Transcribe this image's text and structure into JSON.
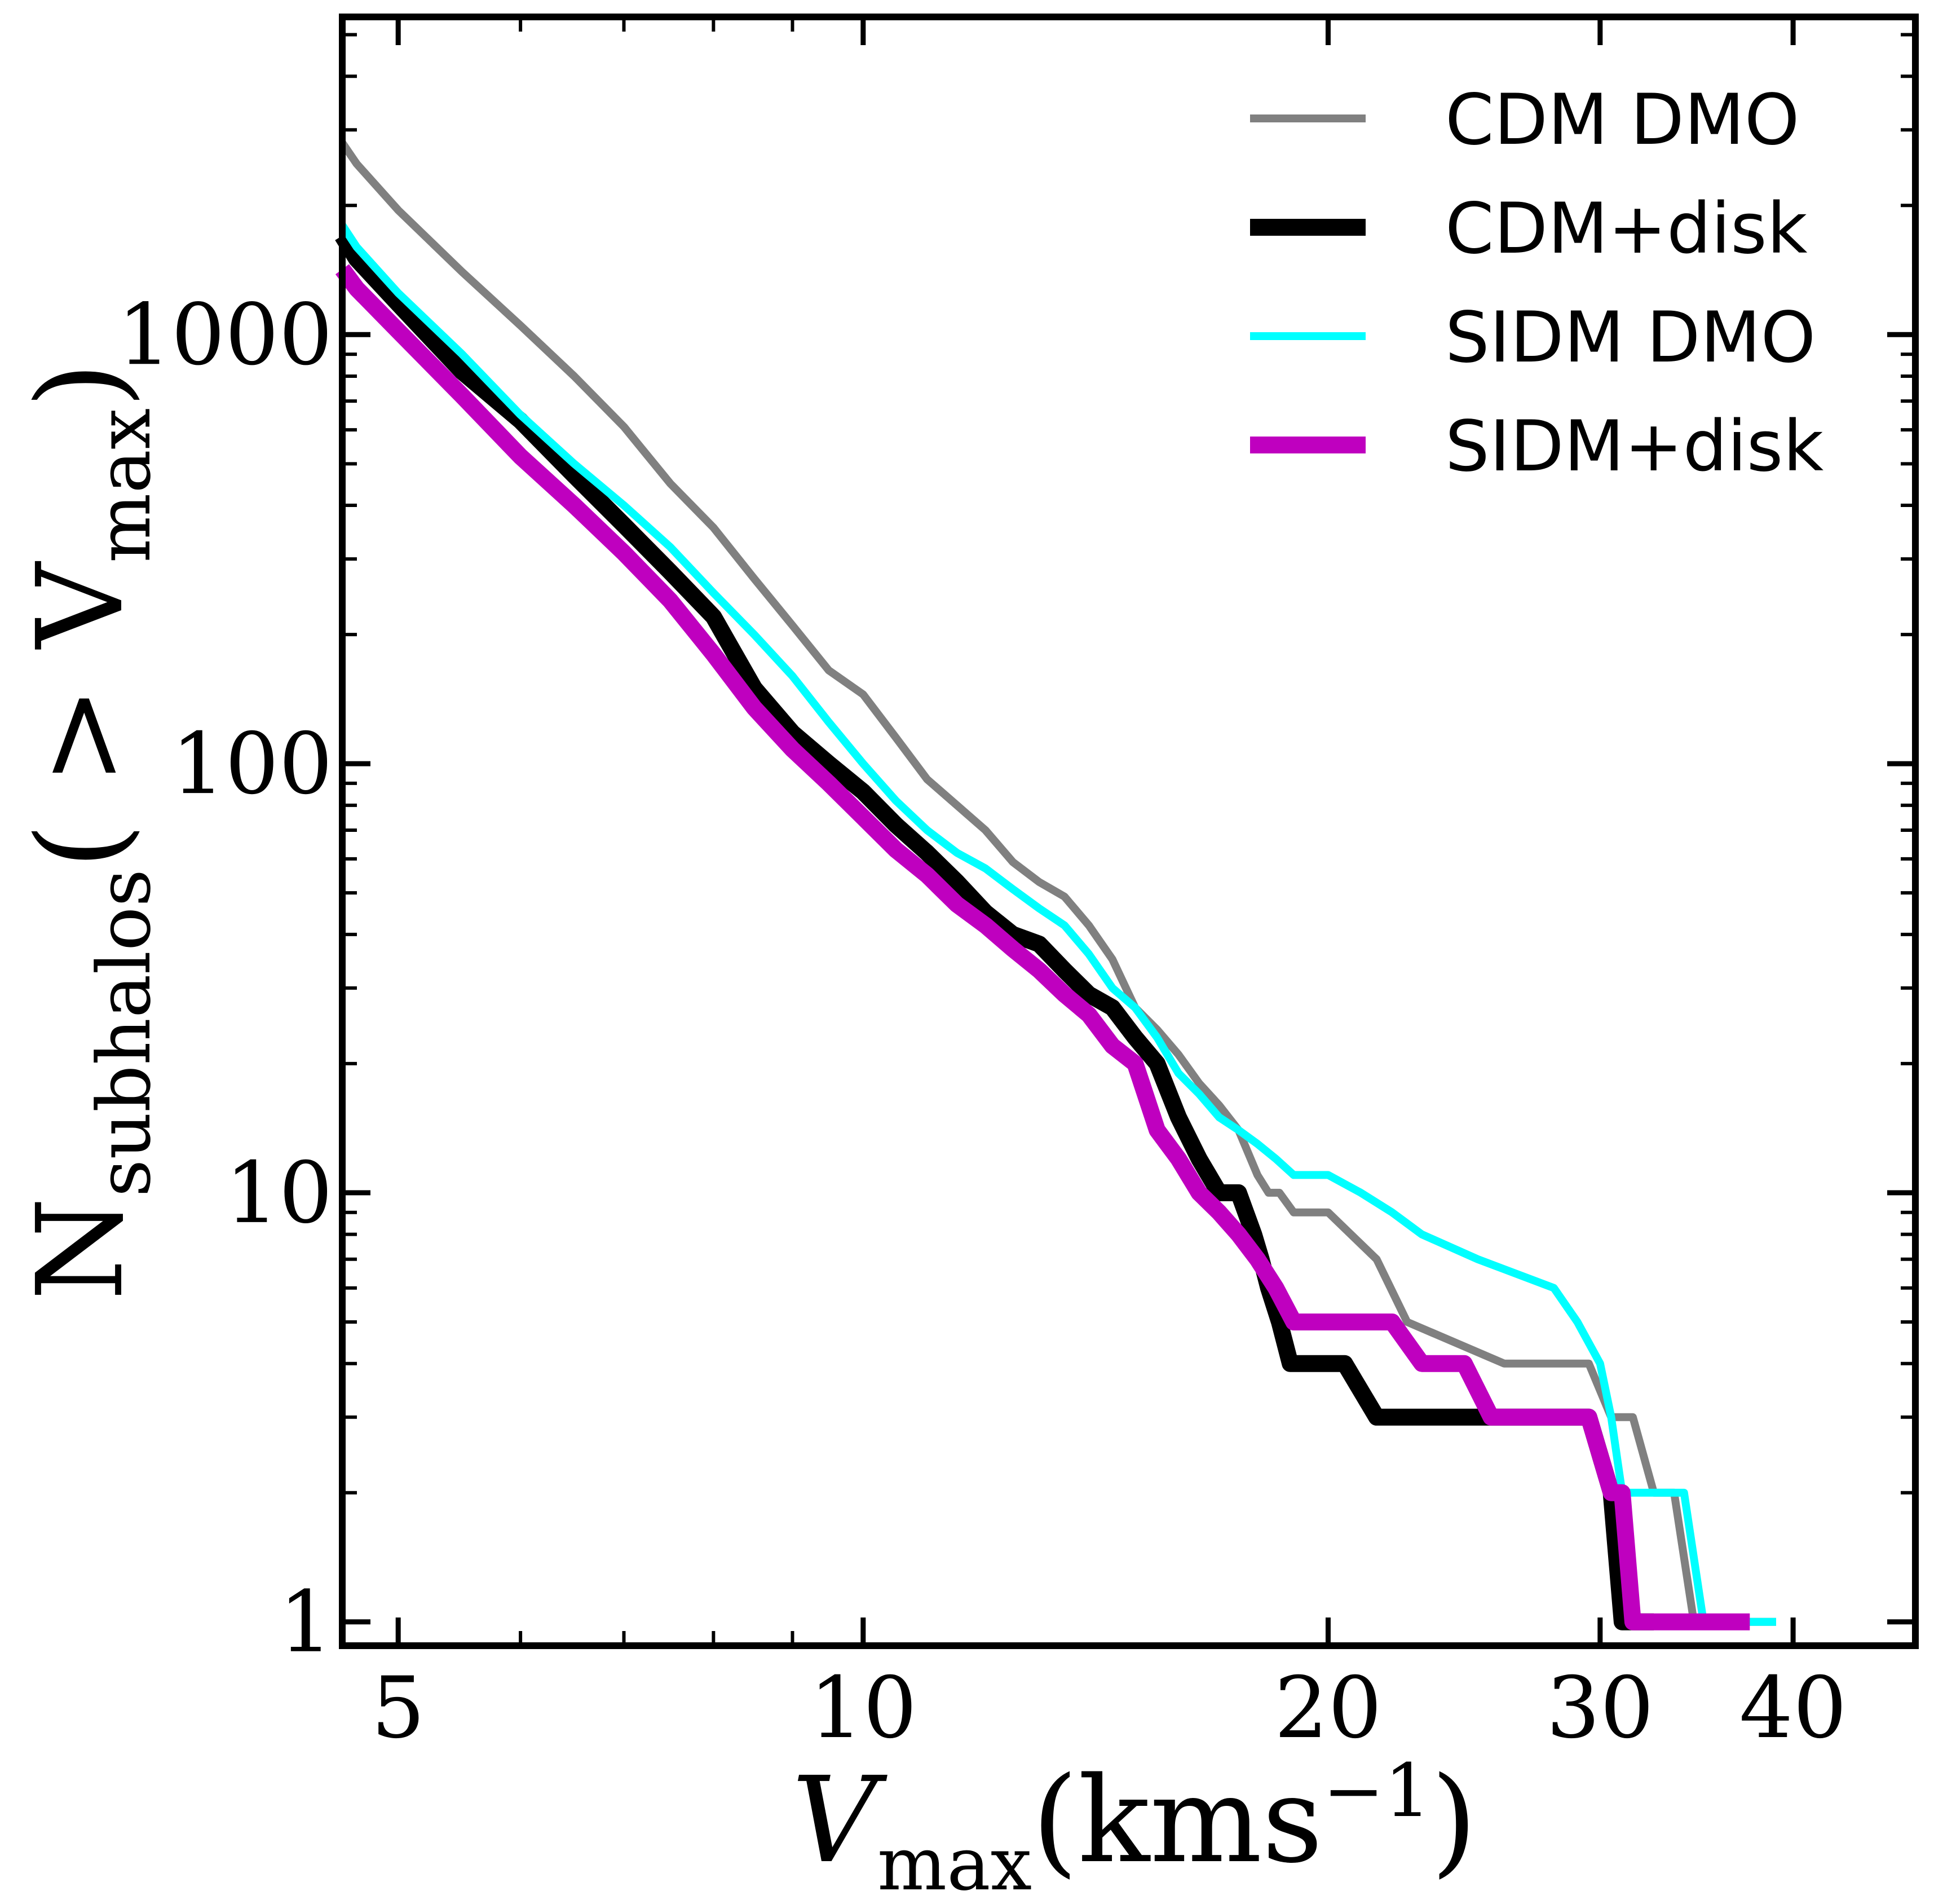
{
  "chart_data": {
    "type": "line",
    "x_scale": "log",
    "y_scale": "log",
    "xlim": [
      4.6,
      48
    ],
    "ylim": [
      0.88,
      5500
    ],
    "x_major_ticks": [
      5,
      10,
      20,
      30,
      40
    ],
    "x_tick_labels": [
      "5",
      "10",
      "20",
      "30",
      "40"
    ],
    "x_minor_ticks": [
      6,
      7,
      8,
      9
    ],
    "y_major_ticks": [
      1,
      10,
      100,
      1000
    ],
    "y_tick_labels": [
      "1",
      "10",
      "100",
      "1000"
    ],
    "y_minor_ticks": [
      2,
      3,
      4,
      5,
      6,
      7,
      8,
      9,
      20,
      30,
      40,
      50,
      60,
      70,
      80,
      90,
      200,
      300,
      400,
      500,
      600,
      700,
      800,
      900,
      2000,
      3000,
      4000,
      5000
    ],
    "xlabel": {
      "main": "V",
      "sub": "max",
      "tail": "(kms",
      "sup": "−1",
      "close": ")"
    },
    "ylabel": {
      "main": "N",
      "sub": "subhalos",
      "tail": "( > V",
      "sub2": "max",
      "close": ")"
    },
    "grid": false,
    "legend_position": "top-right",
    "series": [
      {
        "name": "CDM DMO",
        "color": "#808080",
        "line_width": 14,
        "step": false,
        "x": [
          4.6,
          4.7,
          5.0,
          5.5,
          6.0,
          6.5,
          7.0,
          7.5,
          8.0,
          8.5,
          9.0,
          9.5,
          10.0,
          10.5,
          11.0,
          11.5,
          12.0,
          12.5,
          13.0,
          13.5,
          14.0,
          14.5,
          15.0,
          15.5,
          16.0,
          16.5,
          17.0,
          17.5,
          18.0,
          18.3,
          18.6,
          19.0,
          20.0,
          21.5,
          22.5,
          26.0,
          29.5,
          30.5,
          31.5,
          32.5,
          33.5,
          34.5,
          36.0,
          37.0,
          39.0
        ],
        "y": [
          2800,
          2500,
          1950,
          1400,
          1050,
          800,
          610,
          450,
          355,
          270,
          210,
          165,
          145,
          115,
          92,
          80,
          70,
          59,
          53,
          49,
          42,
          35,
          27,
          24,
          21,
          18,
          16,
          14,
          11,
          10,
          10,
          9,
          9,
          7,
          5,
          4,
          4,
          3,
          3,
          2,
          2,
          1,
          1,
          1,
          1
        ]
      },
      {
        "name": "CDM+disk",
        "color": "#000000",
        "line_width": 30,
        "step": false,
        "x": [
          4.6,
          4.7,
          5.0,
          5.5,
          6.0,
          6.5,
          7.0,
          7.5,
          8.0,
          8.5,
          9.0,
          9.5,
          10.0,
          10.5,
          11.0,
          11.5,
          12.0,
          12.5,
          13.0,
          13.5,
          14.0,
          14.5,
          15.0,
          15.5,
          16.0,
          16.5,
          17.0,
          17.5,
          17.9,
          18.1,
          18.3,
          18.6,
          18.9,
          19.1,
          20.5,
          21.5,
          24.0,
          29.5,
          30.5,
          31.0,
          31.5,
          32.5
        ],
        "y": [
          1700,
          1500,
          1180,
          820,
          630,
          470,
          360,
          280,
          220,
          150,
          118,
          100,
          86,
          72,
          62,
          53,
          45,
          40,
          38,
          33,
          29,
          27,
          23,
          20,
          15,
          12,
          10,
          10,
          8,
          7,
          6,
          5,
          4,
          4,
          4,
          3,
          3,
          3,
          2,
          1,
          1,
          1
        ]
      },
      {
        "name": "SIDM DMO",
        "color": "#00ffff",
        "line_width": 14,
        "step": false,
        "x": [
          4.6,
          4.7,
          5.0,
          5.5,
          6.0,
          6.5,
          7.0,
          7.5,
          8.0,
          8.5,
          9.0,
          9.5,
          10.0,
          10.5,
          11.0,
          11.5,
          12.0,
          12.5,
          13.0,
          13.5,
          14.0,
          14.5,
          15.0,
          15.5,
          16.0,
          16.5,
          17.0,
          17.5,
          18.0,
          18.5,
          19.0,
          20.0,
          21.0,
          22.0,
          23.0,
          25.0,
          28.0,
          29.0,
          30.0,
          30.5,
          31.0,
          32.0,
          33.0,
          34.0,
          35.0,
          35.5,
          36.0,
          37.0,
          39.0
        ],
        "y": [
          1800,
          1600,
          1250,
          900,
          650,
          500,
          400,
          320,
          250,
          200,
          160,
          125,
          100,
          82,
          70,
          62,
          57,
          51,
          46,
          42,
          36,
          30,
          27,
          23,
          19,
          17,
          15,
          14,
          13,
          12,
          11,
          11,
          10,
          9,
          8,
          7,
          6,
          5,
          4,
          3,
          2,
          2,
          2,
          2,
          1,
          1,
          1,
          1,
          1
        ]
      },
      {
        "name": "SIDM+disk",
        "color": "#bf00bf",
        "line_width": 30,
        "step": false,
        "x": [
          4.6,
          4.7,
          5.0,
          5.5,
          6.0,
          6.5,
          7.0,
          7.5,
          8.0,
          8.5,
          9.0,
          9.5,
          10.0,
          10.5,
          11.0,
          11.5,
          12.0,
          12.5,
          13.0,
          13.5,
          14.0,
          14.5,
          15.0,
          15.5,
          16.0,
          16.5,
          17.0,
          17.5,
          18.0,
          18.5,
          19.0,
          20.0,
          21.0,
          22.0,
          23.0,
          24.5,
          25.5,
          29.5,
          30.5,
          31.0,
          31.5,
          32.0,
          33.0,
          35.0,
          37.5
        ],
        "y": [
          1420,
          1280,
          1020,
          720,
          520,
          400,
          310,
          240,
          180,
          135,
          108,
          90,
          75,
          63,
          55,
          47,
          42,
          37,
          33,
          29,
          26,
          22,
          20,
          14,
          12,
          10,
          9,
          8,
          7,
          6,
          5,
          5,
          5,
          5,
          4,
          4,
          3,
          3,
          2,
          2,
          1,
          1,
          1,
          1,
          1
        ]
      }
    ]
  }
}
